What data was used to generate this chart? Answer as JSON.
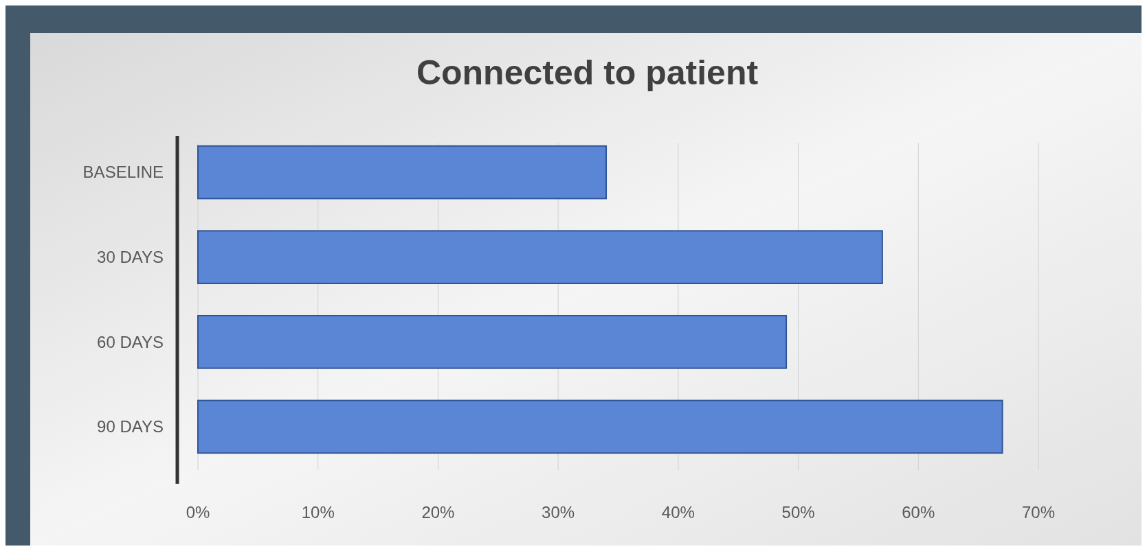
{
  "chart_data": {
    "type": "bar",
    "title": "Connected to patient",
    "orientation": "horizontal",
    "categories": [
      "BASELINE",
      "30 DAYS",
      "60 DAYS",
      "90 DAYS"
    ],
    "values": [
      0.34,
      0.57,
      0.49,
      0.67
    ],
    "color": "#5b86d6",
    "xlim": [
      0,
      0.7
    ],
    "xticks": [
      {
        "value": 0,
        "label": "0%"
      },
      {
        "value": 0.1,
        "label": "10%"
      },
      {
        "value": 0.2,
        "label": "20%"
      },
      {
        "value": 0.3,
        "label": "30%"
      },
      {
        "value": 0.4,
        "label": "40%"
      },
      {
        "value": 0.5,
        "label": "50%"
      },
      {
        "value": 0.6,
        "label": "60%"
      },
      {
        "value": 0.7,
        "label": "70%"
      }
    ],
    "grid": "x"
  }
}
